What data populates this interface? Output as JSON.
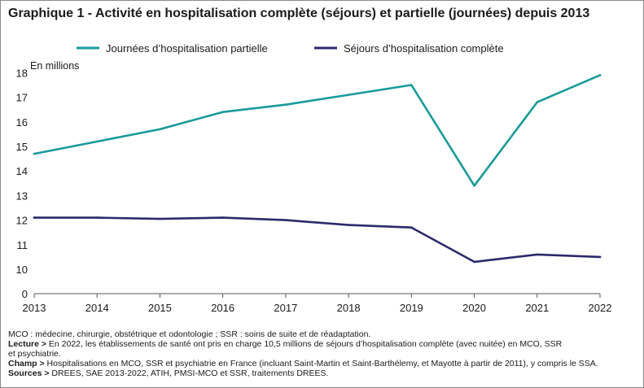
{
  "title": "Graphique 1 - Activité en hospitalisation complète (séjours) et partielle (journées) depuis 2013",
  "colors": {
    "partielle": "#1a9a9a",
    "complete": "#2b2a6b",
    "axis": "#555555",
    "grid": "#dddddd"
  },
  "chart_data": {
    "type": "line",
    "ylabel": "En millions",
    "x": [
      "2013",
      "2014",
      "2015",
      "2016",
      "2017",
      "2018",
      "2019",
      "2020",
      "2021",
      "2022"
    ],
    "yticks": [
      0,
      10,
      11,
      12,
      13,
      14,
      15,
      16,
      17,
      18
    ],
    "ylim": [
      0,
      18
    ],
    "axis_break": "between 0 and 10 (0 is placed one step below 10)",
    "grid": false,
    "legend_position": "top",
    "series": [
      {
        "name": "Journées d’hospitalisation partielle",
        "color_key": "partielle",
        "values": [
          14.7,
          15.2,
          15.7,
          16.4,
          16.7,
          17.1,
          17.5,
          13.4,
          16.8,
          17.9
        ]
      },
      {
        "name": "Séjours d’hospitalisation complète",
        "color_key": "complete",
        "values": [
          12.1,
          12.1,
          12.05,
          12.1,
          12.0,
          11.8,
          11.7,
          10.3,
          10.6,
          10.5
        ]
      }
    ]
  },
  "notes": {
    "mco": "MCO : médecine, chirurgie, obstétrique et odontologie ; SSR : soins de suite et de réadaptation.",
    "lecture_label": "Lecture >",
    "lecture_line1": " En 2022, les établissements de santé ont pris en charge 10,5 millions de séjours d’hospitalisation complète (avec nuitée) en MCO, SSR",
    "lecture_line2": "et psychiatrie.",
    "champ_label": "Champ >",
    "champ_text": " Hospitalisations en MCO, SSR et psychiatrie en France (incluant Saint-Martin et Saint-Barthélemy, et Mayotte à partir de 2011), y compris le SSA.",
    "sources_label": "Sources >",
    "sources_text": " DREES, SAE 2013-2022, ATIH, PMSI-MCO et SSR, traitements DREES."
  }
}
